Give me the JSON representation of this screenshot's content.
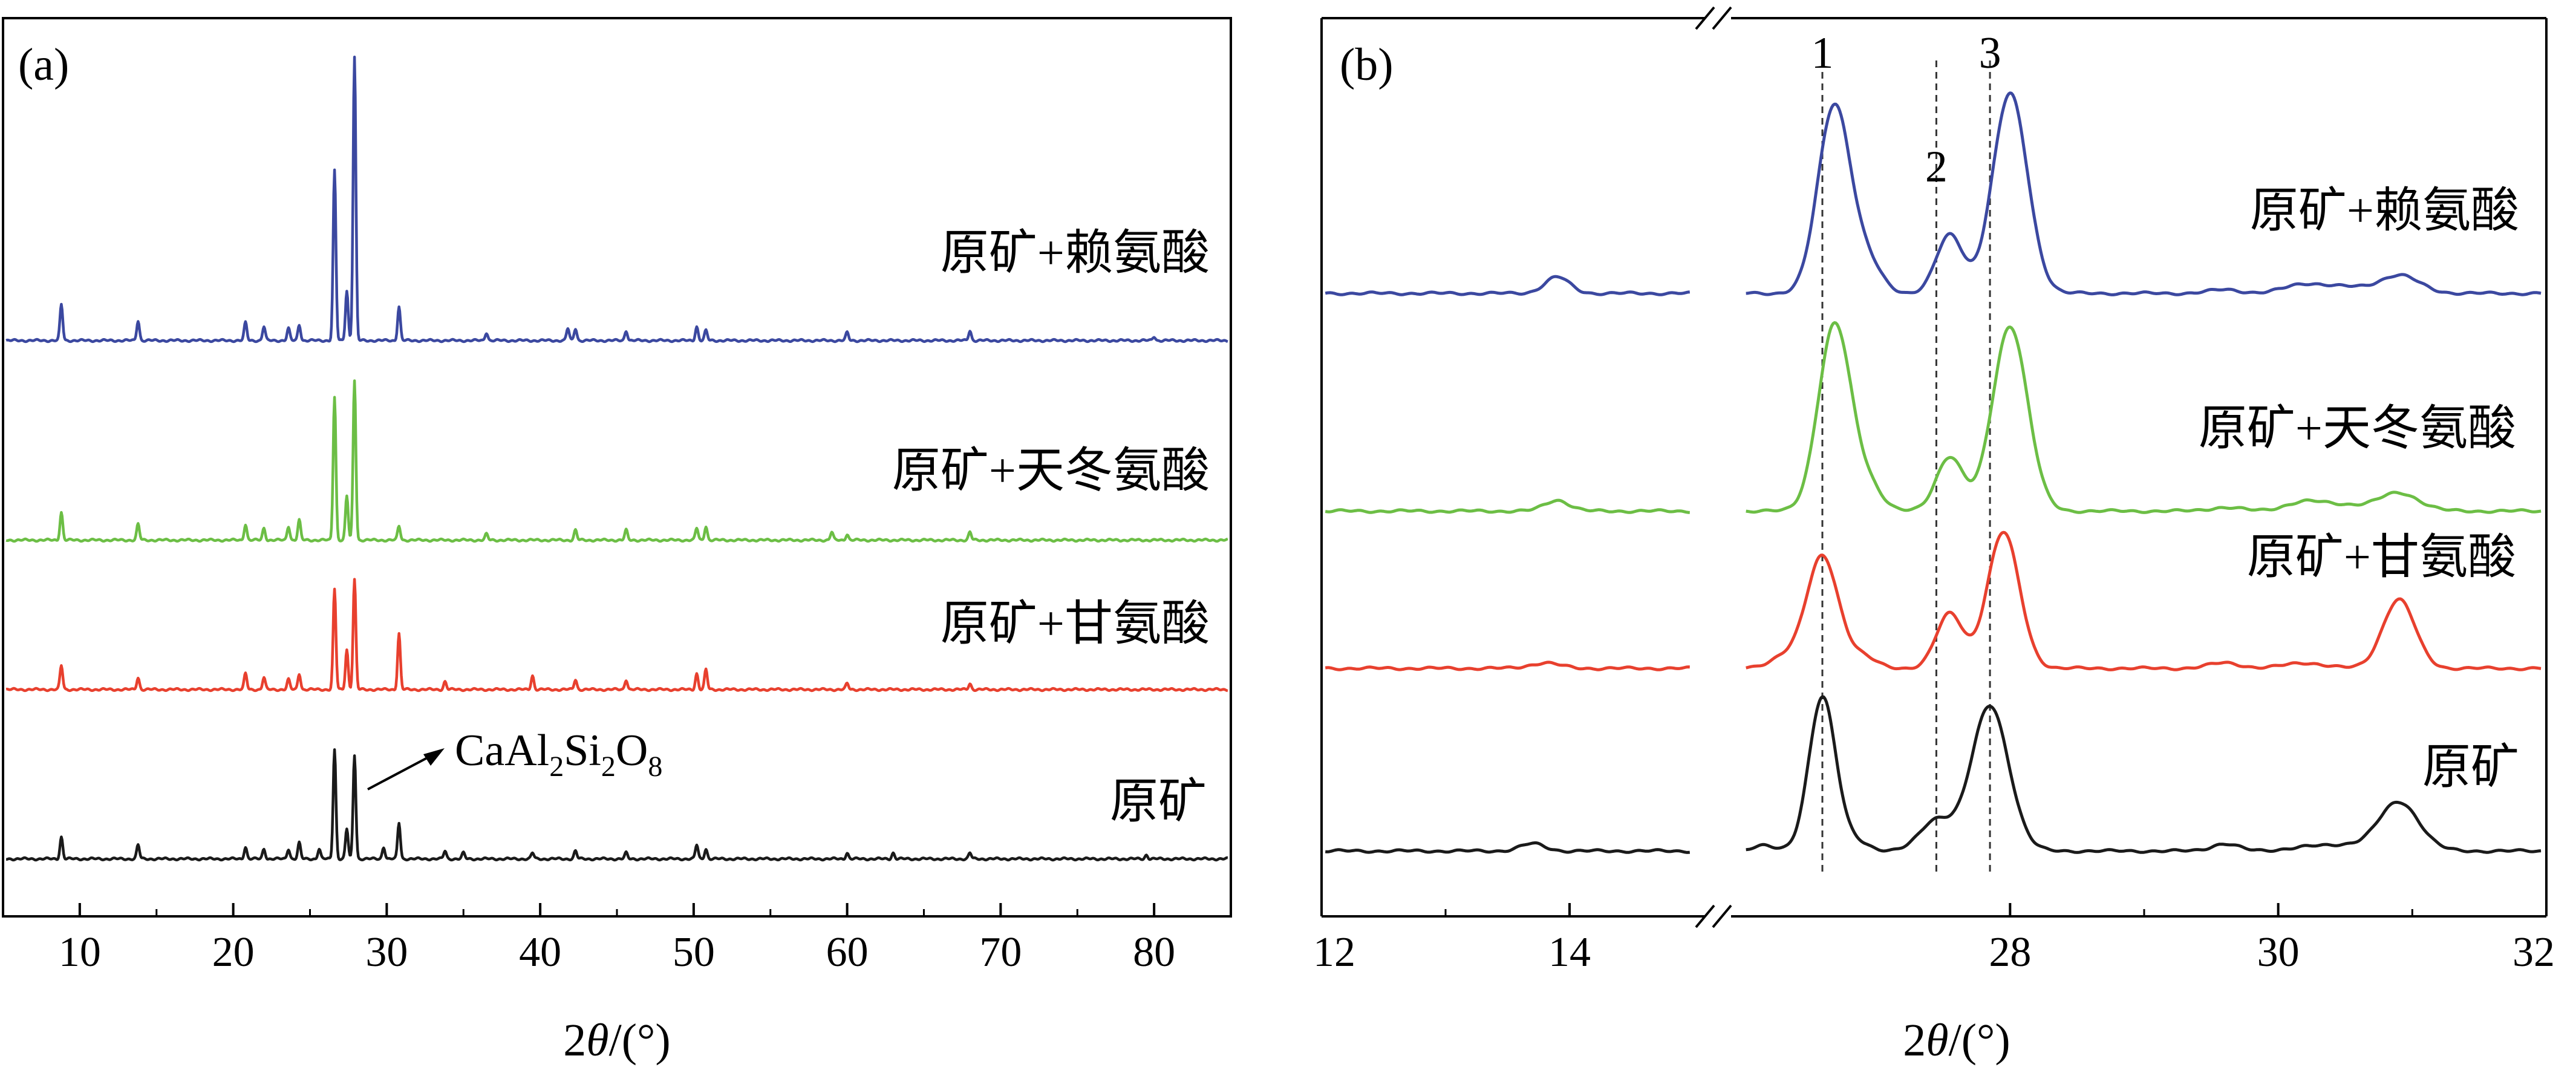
{
  "colors": {
    "lysine": "#3b48a0",
    "aspartic": "#6cbe45",
    "glycine": "#e8402e",
    "raw": "#1a1a1a",
    "axis": "#000000",
    "guide": "#333333"
  },
  "chart_data": [
    {
      "panel_label": "(a)",
      "type": "line",
      "title": "",
      "xlabel_prefix": "2",
      "xlabel_symbol": "θ",
      "xlabel_suffix": "/(°)",
      "ylabel": "",
      "xlim": [
        5,
        85
      ],
      "ticks": [
        10,
        20,
        30,
        40,
        50,
        60,
        70,
        80
      ],
      "tick_labels": [
        "10",
        "20",
        "30",
        "40",
        "50",
        "60",
        "70",
        "80"
      ],
      "annotation": {
        "base": "CaAl",
        "s1": "2",
        "mid": "Si",
        "s2": "2",
        "o": "O",
        "s3": "8",
        "x": 27.8
      },
      "series": [
        {
          "name": "原矿",
          "color_key": "raw",
          "baseline": 0.0,
          "peaks": [
            [
              8.8,
              0.11
            ],
            [
              13.8,
              0.07
            ],
            [
              20.8,
              0.06
            ],
            [
              22.0,
              0.05
            ],
            [
              23.6,
              0.05
            ],
            [
              24.3,
              0.08
            ],
            [
              25.6,
              0.05
            ],
            [
              26.6,
              0.55
            ],
            [
              27.4,
              0.15
            ],
            [
              27.9,
              0.52
            ],
            [
              29.8,
              0.06
            ],
            [
              30.8,
              0.18
            ],
            [
              33.8,
              0.04
            ],
            [
              35.0,
              0.03
            ],
            [
              39.5,
              0.03
            ],
            [
              42.3,
              0.04
            ],
            [
              45.6,
              0.03
            ],
            [
              50.2,
              0.07
            ],
            [
              50.8,
              0.05
            ],
            [
              60.0,
              0.03
            ],
            [
              63.0,
              0.03
            ],
            [
              68.0,
              0.03
            ],
            [
              79.5,
              0.02
            ]
          ]
        },
        {
          "name": "原矿+甘氨酸",
          "color_key": "glycine",
          "baseline": 1.0,
          "peaks": [
            [
              8.8,
              0.12
            ],
            [
              13.8,
              0.06
            ],
            [
              20.8,
              0.08
            ],
            [
              22.0,
              0.06
            ],
            [
              23.6,
              0.05
            ],
            [
              24.3,
              0.08
            ],
            [
              26.6,
              0.5
            ],
            [
              27.4,
              0.2
            ],
            [
              27.9,
              0.55
            ],
            [
              30.8,
              0.28
            ],
            [
              33.8,
              0.04
            ],
            [
              39.5,
              0.07
            ],
            [
              42.3,
              0.05
            ],
            [
              45.6,
              0.05
            ],
            [
              50.2,
              0.08
            ],
            [
              50.8,
              0.1
            ],
            [
              60.0,
              0.03
            ],
            [
              68.0,
              0.03
            ]
          ]
        },
        {
          "name": "原矿+天冬氨酸",
          "color_key": "aspartic",
          "baseline": 2.0,
          "peaks": [
            [
              8.8,
              0.14
            ],
            [
              13.8,
              0.08
            ],
            [
              20.8,
              0.08
            ],
            [
              22.0,
              0.06
            ],
            [
              23.6,
              0.07
            ],
            [
              24.3,
              0.1
            ],
            [
              26.6,
              0.72
            ],
            [
              27.4,
              0.22
            ],
            [
              27.9,
              0.8
            ],
            [
              30.8,
              0.07
            ],
            [
              36.5,
              0.03
            ],
            [
              42.3,
              0.05
            ],
            [
              45.6,
              0.05
            ],
            [
              50.2,
              0.06
            ],
            [
              50.8,
              0.07
            ],
            [
              59.0,
              0.04
            ],
            [
              60.0,
              0.03
            ],
            [
              68.0,
              0.04
            ]
          ]
        },
        {
          "name": "原矿+赖氨酸",
          "color_key": "lysine",
          "baseline": 3.0,
          "peaks": [
            [
              8.8,
              0.18
            ],
            [
              13.8,
              0.1
            ],
            [
              20.8,
              0.09
            ],
            [
              22.0,
              0.07
            ],
            [
              23.6,
              0.06
            ],
            [
              24.3,
              0.08
            ],
            [
              26.6,
              0.85
            ],
            [
              27.4,
              0.25
            ],
            [
              27.9,
              1.42
            ],
            [
              30.8,
              0.17
            ],
            [
              36.5,
              0.04
            ],
            [
              41.8,
              0.06
            ],
            [
              42.3,
              0.06
            ],
            [
              45.6,
              0.05
            ],
            [
              50.2,
              0.07
            ],
            [
              50.8,
              0.05
            ],
            [
              60.0,
              0.04
            ],
            [
              68.0,
              0.05
            ],
            [
              80.0,
              0.02
            ]
          ]
        }
      ]
    },
    {
      "panel_label": "(b)",
      "type": "line",
      "title": "",
      "xlabel_prefix": "2",
      "xlabel_symbol": "θ",
      "xlabel_suffix": "/(°)",
      "ylabel": "",
      "xlim": [
        12,
        32
      ],
      "axis_break": true,
      "segments": [
        [
          12,
          15
        ],
        [
          26,
          32
        ]
      ],
      "ticks": [
        12,
        14,
        28,
        30,
        32
      ],
      "tick_labels": [
        "12",
        "14",
        "28",
        "30",
        "32"
      ],
      "markers": [
        {
          "label": "1",
          "x": 26.6
        },
        {
          "label": "2",
          "x": 27.45
        },
        {
          "label": "3",
          "x": 27.85
        }
      ],
      "series": [
        {
          "name": "原矿",
          "color_key": "raw",
          "baseline": 0.0,
          "peaks": [
            [
              13.7,
              0.04,
              0.1
            ],
            [
              26.15,
              0.03,
              0.08
            ],
            [
              26.6,
              0.85,
              0.1
            ],
            [
              26.85,
              0.05,
              0.1
            ],
            [
              27.45,
              0.17,
              0.12
            ],
            [
              27.85,
              0.8,
              0.14
            ],
            [
              29.6,
              0.04,
              0.1
            ],
            [
              30.2,
              0.02,
              0.15
            ],
            [
              30.5,
              0.03,
              0.15
            ],
            [
              30.9,
              0.27,
              0.15
            ]
          ]
        },
        {
          "name": "原矿+甘氨酸",
          "color_key": "glycine",
          "baseline": 1.0,
          "peaks": [
            [
              13.8,
              0.03,
              0.12
            ],
            [
              26.3,
              0.06,
              0.1
            ],
            [
              26.6,
              0.62,
              0.12
            ],
            [
              26.9,
              0.06,
              0.1
            ],
            [
              27.55,
              0.3,
              0.1
            ],
            [
              27.95,
              0.75,
              0.12
            ],
            [
              29.6,
              0.03,
              0.12
            ],
            [
              30.2,
              0.03,
              0.15
            ],
            [
              30.9,
              0.38,
              0.12
            ]
          ]
        },
        {
          "name": "原矿+天冬氨酸",
          "color_key": "aspartic",
          "baseline": 2.0,
          "peaks": [
            [
              13.9,
              0.06,
              0.1
            ],
            [
              26.6,
              0.08,
              0.1
            ],
            [
              26.7,
              0.98,
              0.12
            ],
            [
              26.95,
              0.12,
              0.1
            ],
            [
              27.55,
              0.3,
              0.1
            ],
            [
              28.0,
              1.02,
              0.13
            ],
            [
              29.6,
              0.02,
              0.12
            ],
            [
              30.2,
              0.05,
              0.15
            ],
            [
              30.5,
              0.03,
              0.15
            ],
            [
              30.9,
              0.1,
              0.15
            ]
          ]
        },
        {
          "name": "原矿+赖氨酸",
          "color_key": "lysine",
          "baseline": 3.1,
          "peaks": [
            [
              13.9,
              0.09,
              0.1
            ],
            [
              26.6,
              0.1,
              0.1
            ],
            [
              26.7,
              0.98,
              0.12
            ],
            [
              26.95,
              0.14,
              0.1
            ],
            [
              27.55,
              0.32,
              0.1
            ],
            [
              28.0,
              1.1,
              0.13
            ],
            [
              29.6,
              0.02,
              0.12
            ],
            [
              30.2,
              0.05,
              0.15
            ],
            [
              30.5,
              0.03,
              0.15
            ],
            [
              30.9,
              0.1,
              0.15
            ]
          ]
        }
      ]
    }
  ]
}
